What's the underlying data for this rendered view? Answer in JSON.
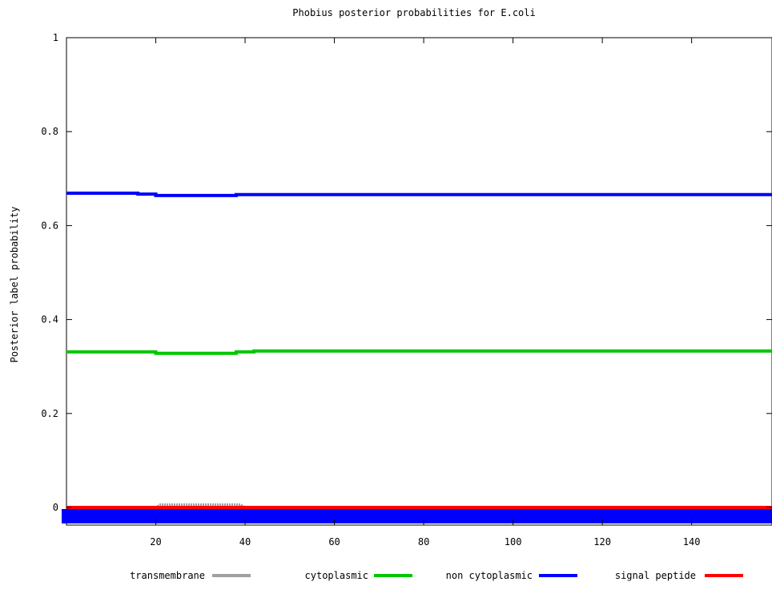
{
  "chart_data": {
    "type": "line",
    "title": "Phobius posterior probabilities for E.coli",
    "xlabel": "",
    "ylabel": "Posterior label probability",
    "xlim": [
      0,
      158
    ],
    "ylim": [
      0,
      1
    ],
    "x_ticks": [
      20,
      40,
      60,
      80,
      100,
      120,
      140
    ],
    "y_ticks": [
      0,
      0.2,
      0.4,
      0.6,
      0.8,
      1
    ],
    "y_tick_labels": [
      "0",
      "0.2",
      "0.4",
      "0.6",
      "0.8",
      "1"
    ],
    "x_tick_labels": [
      "20",
      "40",
      "60",
      "80",
      "100",
      "120",
      "140"
    ],
    "grid": false,
    "legend_position": "bottom",
    "series": [
      {
        "name": "transmembrane",
        "color": "#a0a0a0",
        "style": "dotted",
        "points": [
          [
            0,
            0
          ],
          [
            20,
            0
          ],
          [
            21,
            0.006
          ],
          [
            39,
            0.006
          ],
          [
            40,
            0
          ],
          [
            158,
            0
          ]
        ]
      },
      {
        "name": "cytoplasmic",
        "color": "#00c800",
        "style": "solid",
        "points": [
          [
            0,
            0.331
          ],
          [
            20,
            0.331
          ],
          [
            20,
            0.328
          ],
          [
            38,
            0.328
          ],
          [
            38,
            0.331
          ],
          [
            42,
            0.331
          ],
          [
            42,
            0.333
          ],
          [
            158,
            0.333
          ]
        ]
      },
      {
        "name": "non cytoplasmic",
        "color": "#0000ff",
        "style": "solid",
        "points": [
          [
            0,
            0.669
          ],
          [
            16,
            0.669
          ],
          [
            16,
            0.667
          ],
          [
            20,
            0.667
          ],
          [
            20,
            0.664
          ],
          [
            38,
            0.664
          ],
          [
            38,
            0.666
          ],
          [
            158,
            0.666
          ]
        ]
      },
      {
        "name": "signal peptide",
        "color": "#ff0000",
        "style": "solid",
        "points": [
          [
            0,
            0
          ],
          [
            158,
            0
          ]
        ]
      }
    ],
    "baseline_band": {
      "color": "#0000ff",
      "from_x": 0,
      "to_x": 158
    }
  }
}
